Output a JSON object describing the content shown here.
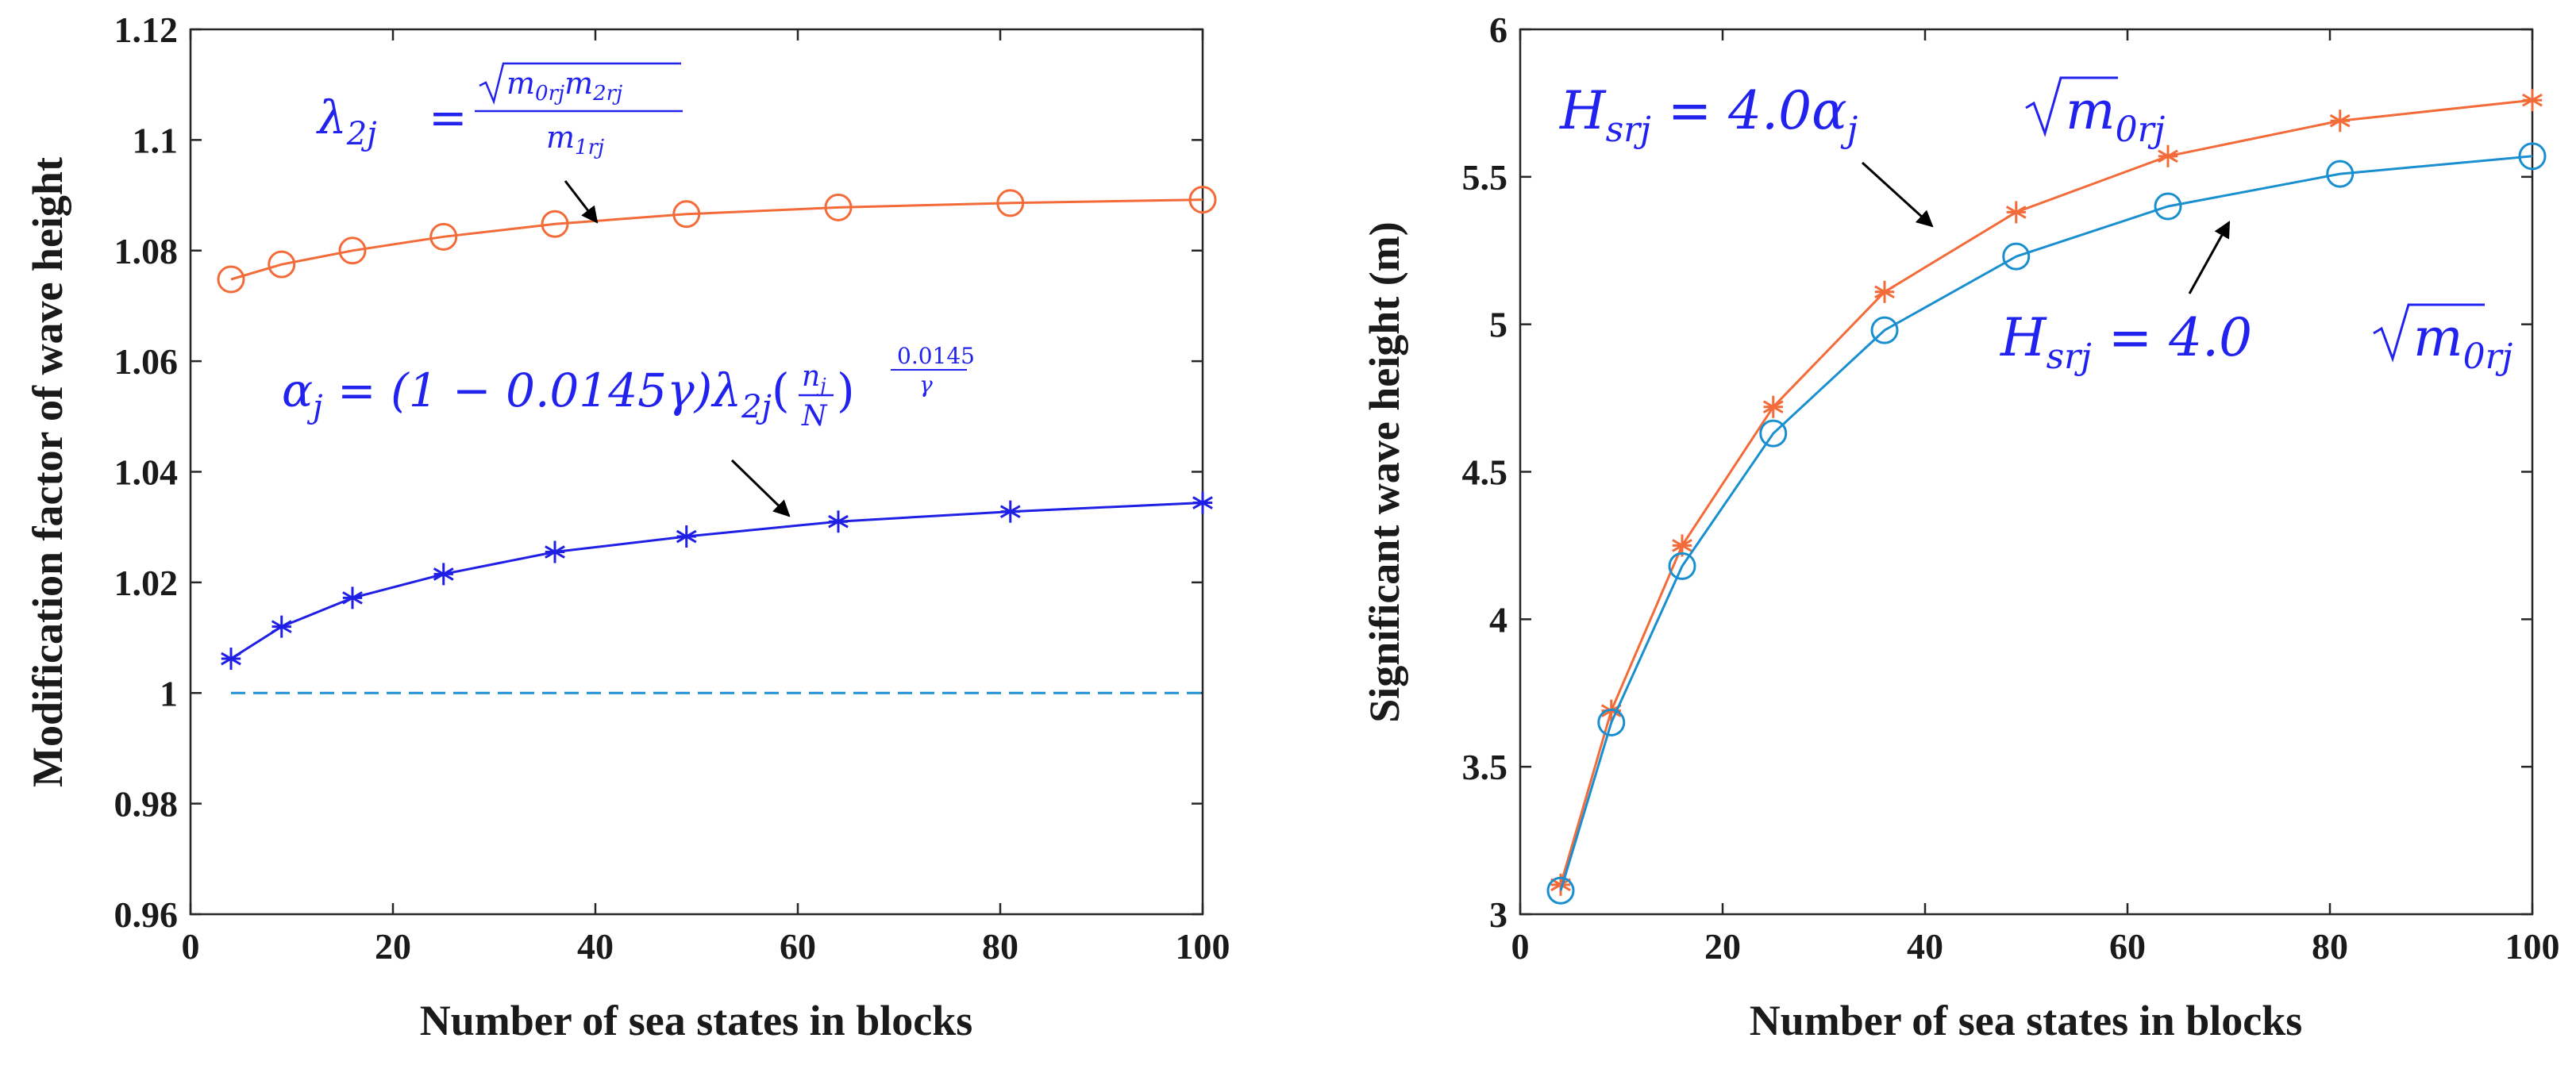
{
  "chart_data": [
    {
      "type": "line",
      "xlabel": "Number of sea states in blocks",
      "ylabel": "Modification factor of wave height",
      "xlim": [
        0,
        100
      ],
      "ylim": [
        0.96,
        1.12
      ],
      "xticks": [
        "0",
        "20",
        "40",
        "60",
        "80",
        "100"
      ],
      "yticks": [
        "0.96",
        "0.98",
        "1",
        "1.02",
        "1.04",
        "1.06",
        "1.08",
        "1.1",
        "1.12"
      ],
      "x": [
        4,
        9,
        16,
        25,
        36,
        49,
        64,
        81,
        100
      ],
      "series": [
        {
          "name": "lambda_2j",
          "marker": "circle",
          "color": "#F26B38",
          "values": [
            1.0748,
            1.0775,
            1.08,
            1.0825,
            1.0848,
            1.0866,
            1.0878,
            1.0886,
            1.0892
          ]
        },
        {
          "name": "alpha_j",
          "marker": "asterisk",
          "color": "#1F1FE6",
          "values": [
            1.0062,
            1.012,
            1.0172,
            1.0215,
            1.0255,
            1.0283,
            1.031,
            1.0328,
            1.0344
          ]
        },
        {
          "name": "reference",
          "style": "dashed",
          "color": "#1E90D6",
          "x": [
            4,
            100
          ],
          "values": [
            1.0,
            1.0
          ]
        }
      ],
      "annotations": {
        "lambda": {
          "lhs": "λ",
          "lhs_sub": "2j",
          "eq": "=",
          "num_root": "m",
          "num_root_sub1": "0rj",
          "num_root_m2": "m",
          "num_root_sub2": "2rj",
          "den": "m",
          "den_sub": "1rj"
        },
        "alpha": {
          "lhs": "α",
          "lhs_sub": "j",
          "eq": "=",
          "paren_open": "(1 − 0.0145γ)",
          "lam": "λ",
          "lam_sub": "2j",
          "frac_num": "n",
          "frac_num_sub": "j",
          "frac_den": "N",
          "exp_num": "0.0145",
          "exp_den": "γ"
        }
      }
    },
    {
      "type": "line",
      "xlabel": "Number of sea states in blocks",
      "ylabel": "Significant wave height (m)",
      "xlim": [
        0,
        100
      ],
      "ylim": [
        3,
        6
      ],
      "xticks": [
        "0",
        "20",
        "40",
        "60",
        "80",
        "100"
      ],
      "yticks": [
        "3",
        "3.5",
        "4",
        "4.5",
        "5",
        "5.5",
        "6"
      ],
      "x": [
        4,
        9,
        16,
        25,
        36,
        49,
        64,
        81,
        100
      ],
      "series": [
        {
          "name": "H_srj modified",
          "marker": "asterisk",
          "color": "#F26B38",
          "values": [
            3.1,
            3.69,
            4.25,
            4.72,
            5.11,
            5.38,
            5.57,
            5.69,
            5.76
          ]
        },
        {
          "name": "H_srj",
          "marker": "circle",
          "color": "#1A8FD0",
          "values": [
            3.08,
            3.65,
            4.18,
            4.63,
            4.98,
            5.23,
            5.4,
            5.51,
            5.57
          ]
        }
      ],
      "annotations": {
        "upper": {
          "lhs": "H",
          "lhs_sub": "srj",
          "eq": "=",
          "coef": "4.0α",
          "coef_sub": "j",
          "root": "m",
          "root_sub": "0rj"
        },
        "lower": {
          "lhs": "H",
          "lhs_sub": "srj",
          "eq": "=",
          "coef": "4.0",
          "root": "m",
          "root_sub": "0rj"
        }
      }
    }
  ]
}
